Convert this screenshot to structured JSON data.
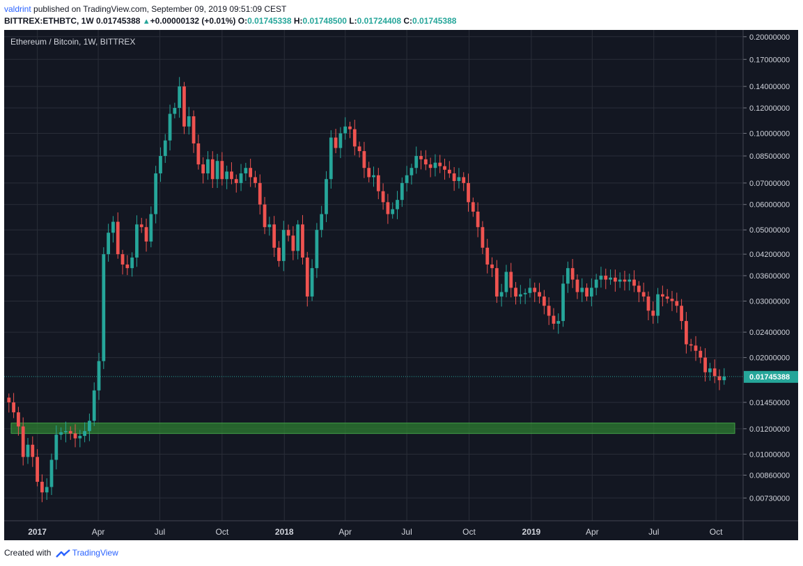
{
  "header": {
    "author": "valdrint",
    "published_text": "published on TradingView.com, September 09, 2019 09:51:09 CEST",
    "symbol": "BITTREX:ETHBTC, 1W",
    "last_price": "0.01745388",
    "change_arrow": "▲",
    "change": "+0.00000132 (+0.01%)",
    "open_label": "O:",
    "open_value": "0.01745338",
    "high_label": "H:",
    "high_value": "0.01748500",
    "low_label": "L:",
    "low_value": "0.01724408",
    "close_label": "C:",
    "close_value": "0.01745388"
  },
  "footer": {
    "created_with": "Created with",
    "brand": "TradingView"
  },
  "colors": {
    "background": "#131722",
    "grid": "#2a2e39",
    "up": "#26a69a",
    "down": "#ef5350",
    "support_zone": "#2e7d32",
    "price_label": "#26a69a",
    "axis_text": "#d1d4dc"
  },
  "chart_data": {
    "type": "candlestick",
    "title": "Ethereum / Bitcoin, 1W, BITTREX",
    "y_scale": "log",
    "ylim": [
      0.0062,
      0.21
    ],
    "y_ticks": [
      "0.20000000",
      "0.17000000",
      "0.14000000",
      "0.12000000",
      "0.10000000",
      "0.08500000",
      "0.07000000",
      "0.06000000",
      "0.05000000",
      "0.04200000",
      "0.03600000",
      "0.03000000",
      "0.02400000",
      "0.02000000",
      "0.01450000",
      "0.01200000",
      "0.01000000",
      "0.00860000",
      "0.00730000"
    ],
    "x_range": [
      "2016-11-13",
      "2019-11-10"
    ],
    "x_ticks": [
      {
        "date": "2017-01-01",
        "label": "2017",
        "major": true
      },
      {
        "date": "2017-04-01",
        "label": "Apr",
        "major": false
      },
      {
        "date": "2017-07-01",
        "label": "Jul",
        "major": false
      },
      {
        "date": "2017-10-01",
        "label": "Oct",
        "major": false
      },
      {
        "date": "2018-01-01",
        "label": "2018",
        "major": true
      },
      {
        "date": "2018-04-01",
        "label": "Apr",
        "major": false
      },
      {
        "date": "2018-07-01",
        "label": "Jul",
        "major": false
      },
      {
        "date": "2018-10-01",
        "label": "Oct",
        "major": false
      },
      {
        "date": "2019-01-01",
        "label": "2019",
        "major": true
      },
      {
        "date": "2019-04-01",
        "label": "Apr",
        "major": false
      },
      {
        "date": "2019-07-01",
        "label": "Jul",
        "major": false
      },
      {
        "date": "2019-10-01",
        "label": "Oct",
        "major": false
      }
    ],
    "first_candle_date": "2016-11-20",
    "interval_days": 7,
    "closes": [
      0.0145,
      0.0135,
      0.0122,
      0.0098,
      0.0107,
      0.0098,
      0.0082,
      0.0076,
      0.0079,
      0.0096,
      0.0115,
      0.0117,
      0.0118,
      0.0116,
      0.0112,
      0.0114,
      0.0118,
      0.0127,
      0.0158,
      0.0195,
      0.042,
      0.049,
      0.053,
      0.042,
      0.039,
      0.038,
      0.041,
      0.052,
      0.051,
      0.046,
      0.056,
      0.075,
      0.085,
      0.095,
      0.115,
      0.12,
      0.14,
      0.105,
      0.113,
      0.093,
      0.08,
      0.075,
      0.083,
      0.072,
      0.082,
      0.072,
      0.076,
      0.072,
      0.07,
      0.075,
      0.078,
      0.073,
      0.07,
      0.06,
      0.051,
      0.052,
      0.044,
      0.04,
      0.05,
      0.048,
      0.043,
      0.052,
      0.041,
      0.031,
      0.038,
      0.05,
      0.056,
      0.072,
      0.097,
      0.09,
      0.1,
      0.105,
      0.103,
      0.091,
      0.088,
      0.078,
      0.073,
      0.074,
      0.066,
      0.061,
      0.056,
      0.058,
      0.062,
      0.07,
      0.074,
      0.078,
      0.085,
      0.083,
      0.08,
      0.078,
      0.081,
      0.079,
      0.077,
      0.075,
      0.071,
      0.073,
      0.07,
      0.061,
      0.057,
      0.051,
      0.044,
      0.039,
      0.038,
      0.031,
      0.032,
      0.037,
      0.033,
      0.031,
      0.0315,
      0.0318,
      0.033,
      0.032,
      0.031,
      0.029,
      0.027,
      0.0255,
      0.026,
      0.034,
      0.038,
      0.035,
      0.032,
      0.033,
      0.031,
      0.033,
      0.035,
      0.036,
      0.035,
      0.0355,
      0.0345,
      0.035,
      0.0345,
      0.035,
      0.0335,
      0.032,
      0.031,
      0.028,
      0.027,
      0.0315,
      0.031,
      0.0305,
      0.03,
      0.029,
      0.026,
      0.022,
      0.0218,
      0.021,
      0.02,
      0.018,
      0.0185,
      0.0175,
      0.017,
      0.0174538
    ]
  }
}
